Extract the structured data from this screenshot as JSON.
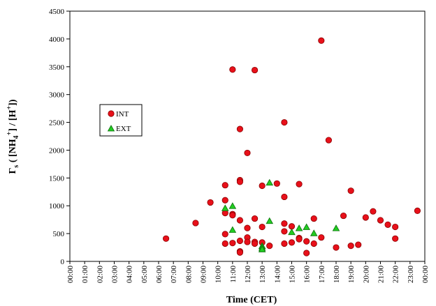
{
  "chart_data": {
    "type": "scatter",
    "xlabel": "Time (CET)",
    "ylabel_parts": [
      "Γ",
      "s",
      " ( [NH",
      "4",
      "+",
      "] / [H",
      "+",
      "])"
    ],
    "xlim": [
      0,
      24
    ],
    "ylim": [
      0,
      4500
    ],
    "yticks": [
      0,
      500,
      1000,
      1500,
      2000,
      2500,
      3000,
      3500,
      4000,
      4500
    ],
    "xtick_labels": [
      "00:00",
      "01:00",
      "02:00",
      "03:00",
      "04:00",
      "05:00",
      "06:00",
      "07:00",
      "08:00",
      "09:00",
      "10:00",
      "11:00",
      "12:00",
      "13:00",
      "14:00",
      "15:00",
      "16:00",
      "17:00",
      "18:00",
      "19:00",
      "20:00",
      "21:00",
      "22:00",
      "23:00",
      "00:00"
    ],
    "legend_placement": "upper-left-inset",
    "series": [
      {
        "name": "INT",
        "color": "#e8101a",
        "marker": "circle",
        "points": [
          [
            6.5,
            410
          ],
          [
            8.5,
            690
          ],
          [
            9.5,
            1060
          ],
          [
            10.5,
            1370
          ],
          [
            10.5,
            1100
          ],
          [
            10.5,
            870
          ],
          [
            10.5,
            490
          ],
          [
            10.5,
            320
          ],
          [
            11.0,
            3450
          ],
          [
            11.0,
            850
          ],
          [
            11.0,
            830
          ],
          [
            11.0,
            330
          ],
          [
            11.5,
            2380
          ],
          [
            11.5,
            1460
          ],
          [
            11.5,
            1430
          ],
          [
            11.5,
            740
          ],
          [
            11.5,
            370
          ],
          [
            11.5,
            180
          ],
          [
            11.5,
            160
          ],
          [
            12.0,
            1950
          ],
          [
            12.0,
            600
          ],
          [
            12.0,
            430
          ],
          [
            12.0,
            350
          ],
          [
            12.5,
            3440
          ],
          [
            12.5,
            770
          ],
          [
            12.5,
            350
          ],
          [
            12.5,
            320
          ],
          [
            13.0,
            1360
          ],
          [
            13.0,
            620
          ],
          [
            13.0,
            340
          ],
          [
            13.5,
            280
          ],
          [
            14.0,
            1400
          ],
          [
            14.5,
            2500
          ],
          [
            14.5,
            1160
          ],
          [
            14.5,
            680
          ],
          [
            14.5,
            540
          ],
          [
            14.5,
            320
          ],
          [
            15.0,
            630
          ],
          [
            15.0,
            340
          ],
          [
            15.5,
            1390
          ],
          [
            15.5,
            420
          ],
          [
            15.5,
            400
          ],
          [
            16.0,
            360
          ],
          [
            16.0,
            150
          ],
          [
            16.5,
            770
          ],
          [
            16.5,
            320
          ],
          [
            17.0,
            3970
          ],
          [
            17.0,
            430
          ],
          [
            17.5,
            2180
          ],
          [
            18.0,
            250
          ],
          [
            18.5,
            820
          ],
          [
            19.0,
            1270
          ],
          [
            19.0,
            280
          ],
          [
            19.5,
            300
          ],
          [
            20.0,
            790
          ],
          [
            20.5,
            900
          ],
          [
            21.0,
            740
          ],
          [
            21.5,
            660
          ],
          [
            22.0,
            620
          ],
          [
            22.0,
            410
          ],
          [
            23.5,
            910
          ]
        ]
      },
      {
        "name": "EXT",
        "color": "#22cc22",
        "marker": "triangle",
        "points": [
          [
            10.5,
            950
          ],
          [
            11.0,
            990
          ],
          [
            11.0,
            560
          ],
          [
            13.0,
            270
          ],
          [
            13.0,
            240
          ],
          [
            13.0,
            210
          ],
          [
            13.5,
            1410
          ],
          [
            13.5,
            720
          ],
          [
            15.0,
            520
          ],
          [
            15.5,
            590
          ],
          [
            16.0,
            610
          ],
          [
            16.5,
            500
          ],
          [
            18.0,
            590
          ]
        ]
      }
    ]
  }
}
